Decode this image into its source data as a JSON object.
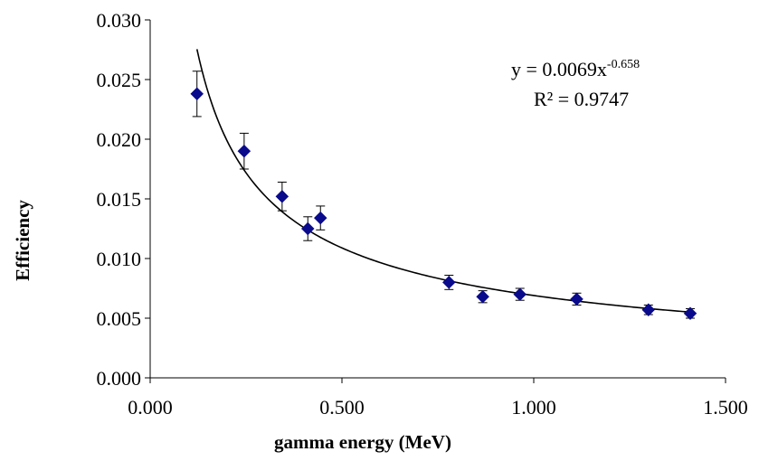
{
  "chart_data": {
    "type": "scatter",
    "xlabel": "gamma energy (MeV)",
    "ylabel": "Efficiency",
    "xlim": [
      0,
      1.5
    ],
    "ylim": [
      0,
      0.03
    ],
    "x_ticks": [
      "0.000",
      "0.500",
      "1.000",
      "1.500"
    ],
    "y_ticks": [
      "0.000",
      "0.005",
      "0.010",
      "0.015",
      "0.020",
      "0.025",
      "0.030"
    ],
    "grid": false,
    "marker": "diamond",
    "marker_color": "#0a0a8c",
    "points": [
      {
        "x": 0.122,
        "y": 0.0238,
        "err": 0.0019
      },
      {
        "x": 0.245,
        "y": 0.019,
        "err": 0.0015
      },
      {
        "x": 0.344,
        "y": 0.0152,
        "err": 0.0012
      },
      {
        "x": 0.411,
        "y": 0.0125,
        "err": 0.001
      },
      {
        "x": 0.444,
        "y": 0.0134,
        "err": 0.001
      },
      {
        "x": 0.779,
        "y": 0.008,
        "err": 0.0006
      },
      {
        "x": 0.867,
        "y": 0.0068,
        "err": 0.0005
      },
      {
        "x": 0.964,
        "y": 0.007,
        "err": 0.0005
      },
      {
        "x": 1.112,
        "y": 0.0066,
        "err": 0.0005
      },
      {
        "x": 1.299,
        "y": 0.0057,
        "err": 0.0004
      },
      {
        "x": 1.408,
        "y": 0.0054,
        "err": 0.0004
      }
    ],
    "trendline": {
      "type": "power",
      "coefficient": 0.0069,
      "exponent": -0.658,
      "x_range": [
        0.122,
        1.408
      ],
      "equation_base": "y = 0.0069x",
      "equation_exponent": "-0.658",
      "r_squared_label": "R² = 0.9747"
    }
  }
}
